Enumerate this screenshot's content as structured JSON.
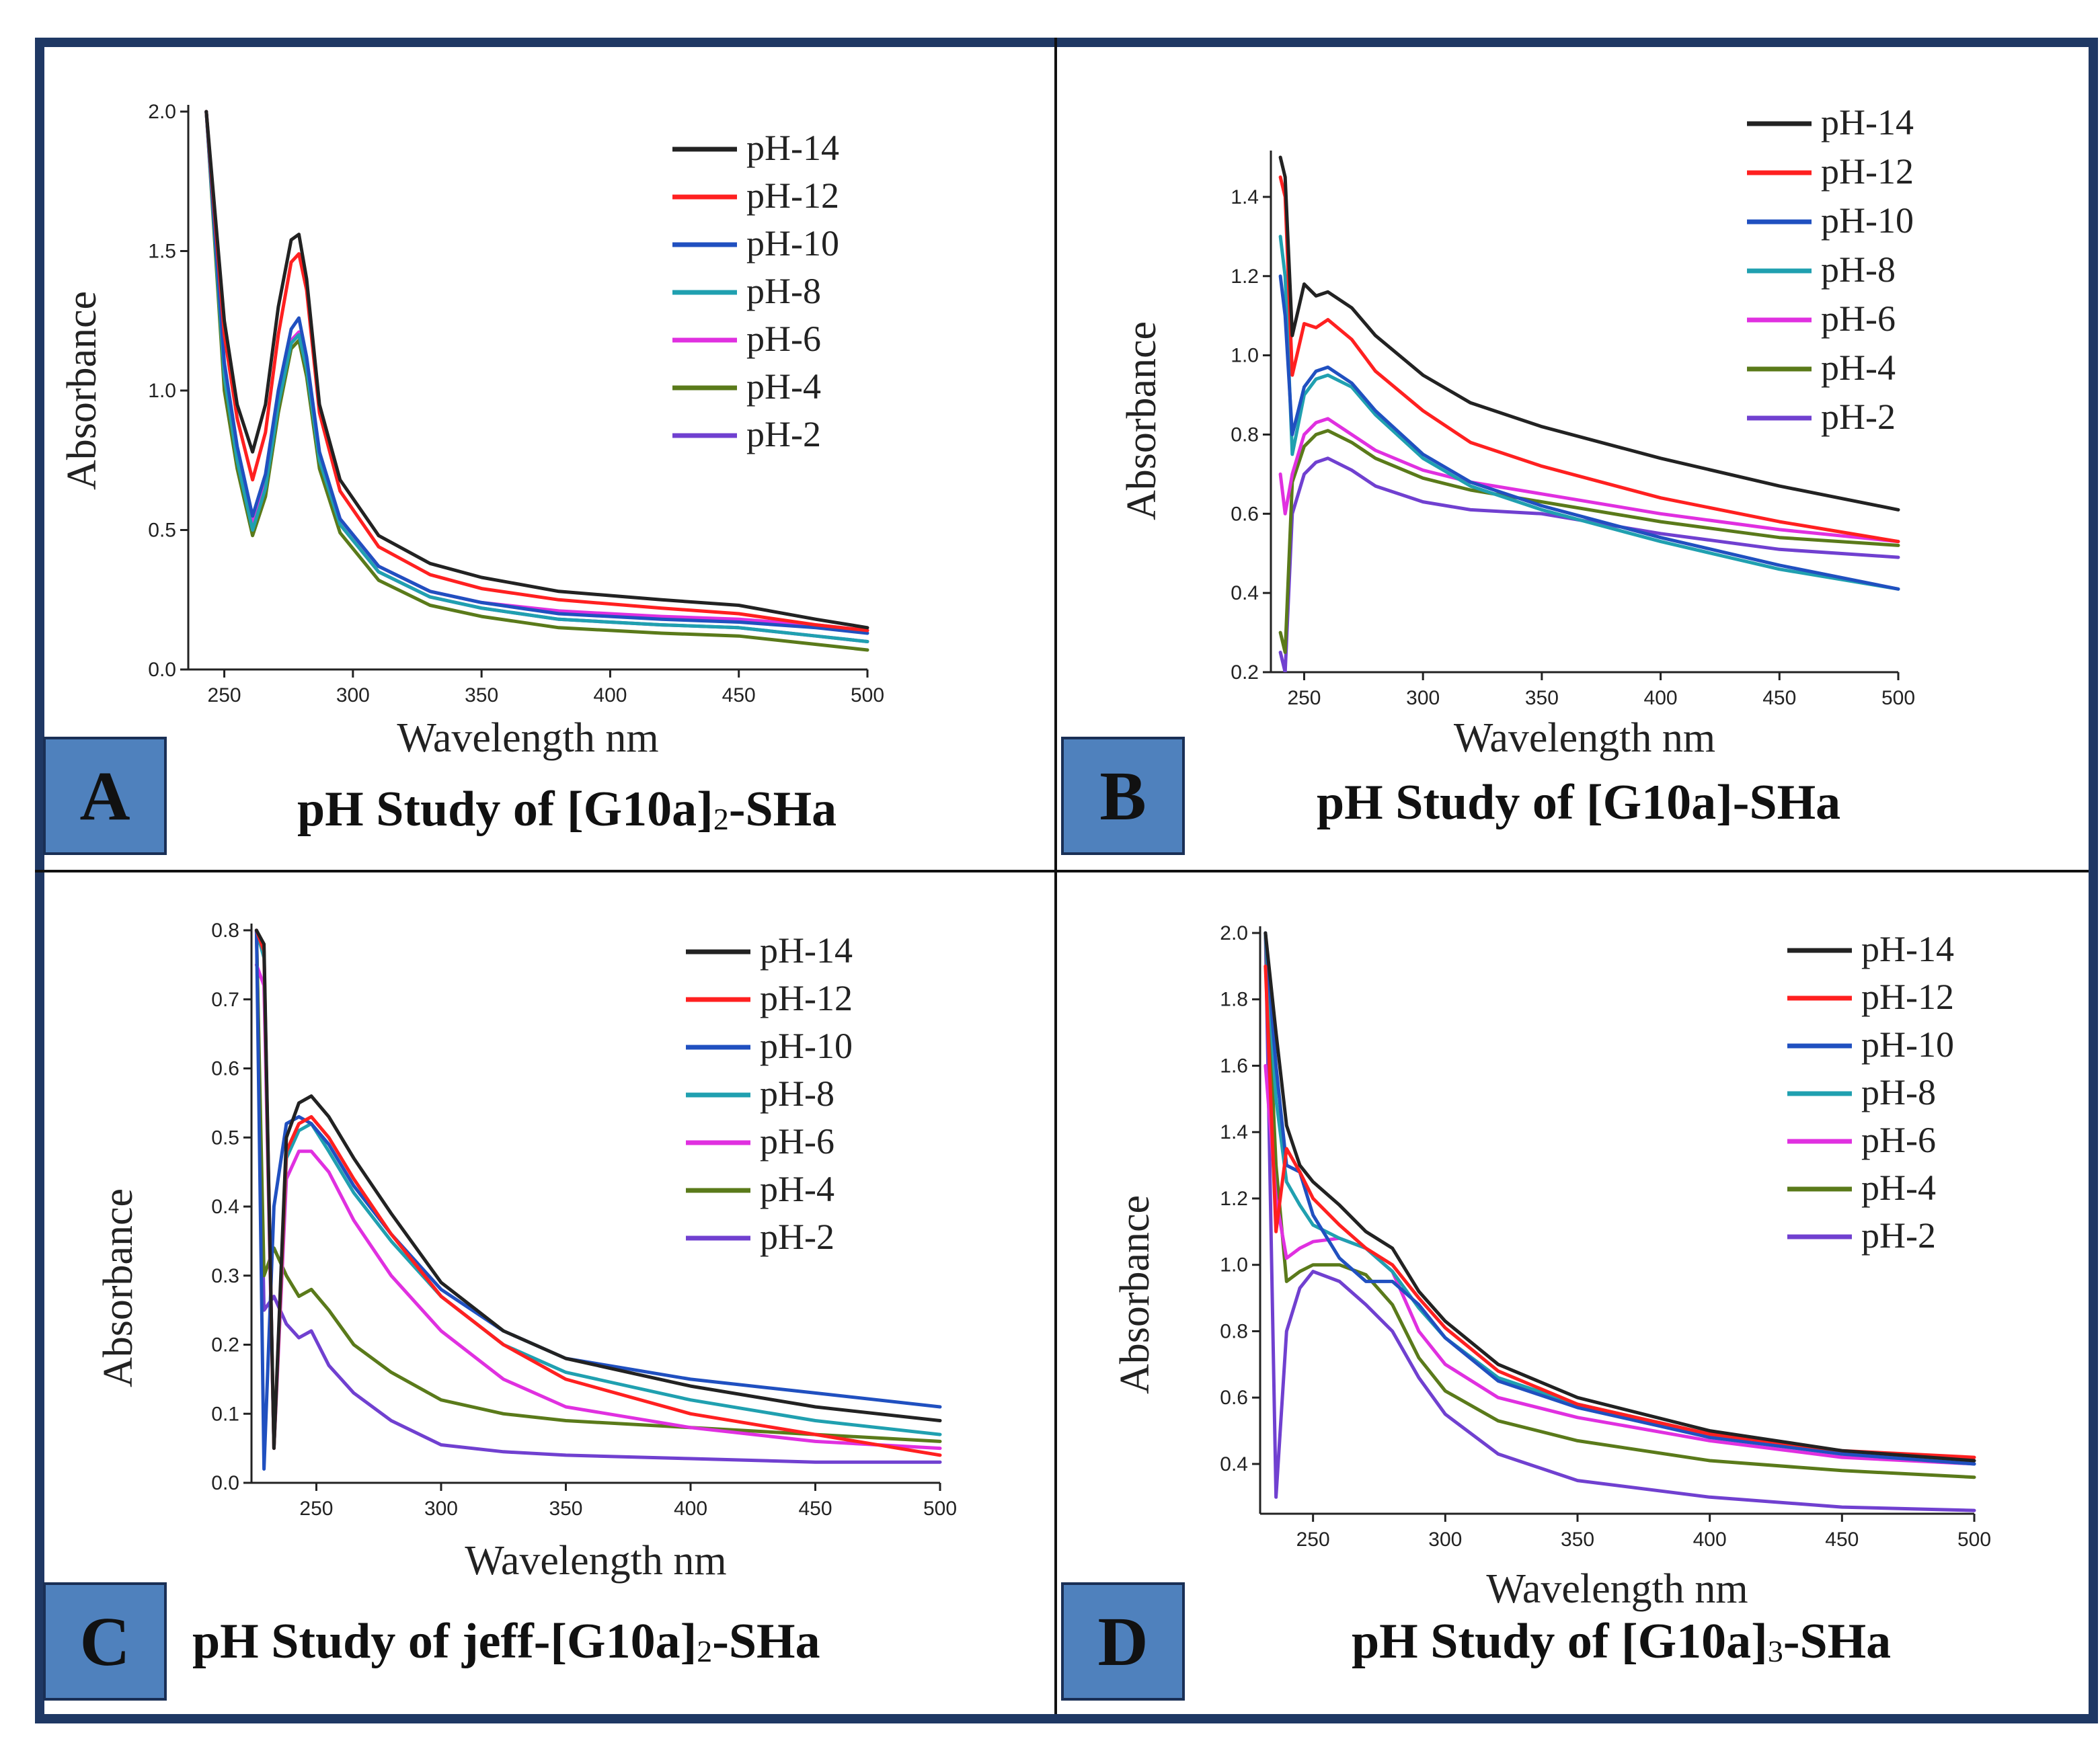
{
  "figure": {
    "background": "#ffffff",
    "frame_color": "#1f3864",
    "badge_color": "#4f81bd",
    "ph_colors": {
      "pH-14": "#222222",
      "pH-12": "#ff2020",
      "pH-10": "#2050c0",
      "pH-8": "#20a0b0",
      "pH-6": "#e030e0",
      "pH-4": "#5a7a1a",
      "pH-2": "#7040d0"
    }
  },
  "chart_data": [
    {
      "id": "A",
      "badge": "A",
      "title_parts": [
        "pH Study of [G10a]",
        "2",
        "-SHa"
      ],
      "type": "line",
      "xlabel": "Wavelength nm",
      "ylabel": "Absorbance",
      "xlim": [
        236,
        500
      ],
      "ylim": [
        0,
        2.0
      ],
      "xticks": [
        250,
        300,
        350,
        400,
        450,
        500
      ],
      "yticks": [
        0.0,
        0.5,
        1.0,
        1.5,
        2.0
      ],
      "ytick_labels": [
        "0.0",
        "0.5",
        "1.0",
        "1.5",
        "2.0"
      ],
      "legend": "top-right",
      "x": [
        243,
        250,
        255,
        261,
        266,
        271,
        276,
        279,
        282,
        287,
        295,
        310,
        330,
        350,
        380,
        420,
        450,
        480,
        500
      ],
      "series": [
        {
          "name": "pH-14",
          "values": [
            2.0,
            1.25,
            0.95,
            0.78,
            0.95,
            1.3,
            1.54,
            1.56,
            1.4,
            0.95,
            0.68,
            0.48,
            0.38,
            0.33,
            0.28,
            0.25,
            0.23,
            0.18,
            0.15
          ]
        },
        {
          "name": "pH-12",
          "values": [
            2.0,
            1.2,
            0.9,
            0.68,
            0.85,
            1.2,
            1.46,
            1.49,
            1.36,
            0.92,
            0.64,
            0.44,
            0.34,
            0.29,
            0.25,
            0.22,
            0.2,
            0.16,
            0.14
          ]
        },
        {
          "name": "pH-10",
          "values": [
            2.0,
            1.1,
            0.8,
            0.55,
            0.7,
            1.0,
            1.22,
            1.26,
            1.12,
            0.78,
            0.54,
            0.37,
            0.28,
            0.24,
            0.2,
            0.18,
            0.17,
            0.15,
            0.13
          ]
        },
        {
          "name": "pH-8",
          "values": [
            2.0,
            1.05,
            0.75,
            0.5,
            0.65,
            0.95,
            1.17,
            1.2,
            1.08,
            0.75,
            0.52,
            0.35,
            0.26,
            0.22,
            0.18,
            0.16,
            0.15,
            0.12,
            0.1
          ]
        },
        {
          "name": "pH-6",
          "values": [
            2.0,
            1.08,
            0.78,
            0.52,
            0.68,
            0.98,
            1.18,
            1.21,
            1.1,
            0.77,
            0.54,
            0.37,
            0.28,
            0.24,
            0.21,
            0.19,
            0.18,
            0.16,
            0.14
          ]
        },
        {
          "name": "pH-4",
          "values": [
            2.0,
            1.0,
            0.72,
            0.48,
            0.62,
            0.92,
            1.15,
            1.18,
            1.05,
            0.72,
            0.49,
            0.32,
            0.23,
            0.19,
            0.15,
            0.13,
            0.12,
            0.09,
            0.07
          ]
        },
        {
          "name": "pH-2",
          "values": [
            2.0,
            1.06,
            0.76,
            0.51,
            0.66,
            0.96,
            1.17,
            1.2,
            1.08,
            0.75,
            0.52,
            0.35,
            0.26,
            0.22,
            0.18,
            0.16,
            0.15,
            0.12,
            0.1
          ]
        }
      ]
    },
    {
      "id": "B",
      "badge": "B",
      "title_parts": [
        "pH Study of [G10a]-SHa"
      ],
      "type": "line",
      "xlabel": "Wavelength nm",
      "ylabel": "Absorbance",
      "xlim": [
        236,
        500
      ],
      "ylim": [
        0.2,
        1.5
      ],
      "xticks": [
        250,
        300,
        350,
        400,
        450,
        500
      ],
      "yticks": [
        0.2,
        0.4,
        0.6,
        0.8,
        1.0,
        1.2,
        1.4
      ],
      "ytick_labels": [
        "0.2",
        "0.4",
        "0.6",
        "0.8",
        "1.0",
        "1.2",
        "1.4"
      ],
      "legend": "top-right",
      "x": [
        240,
        242,
        245,
        250,
        255,
        260,
        270,
        280,
        300,
        320,
        350,
        400,
        450,
        500
      ],
      "series": [
        {
          "name": "pH-14",
          "values": [
            1.5,
            1.45,
            1.05,
            1.18,
            1.15,
            1.16,
            1.12,
            1.05,
            0.95,
            0.88,
            0.82,
            0.74,
            0.67,
            0.61
          ]
        },
        {
          "name": "pH-12",
          "values": [
            1.45,
            1.4,
            0.95,
            1.08,
            1.07,
            1.09,
            1.04,
            0.96,
            0.86,
            0.78,
            0.72,
            0.64,
            0.58,
            0.53
          ]
        },
        {
          "name": "pH-10",
          "values": [
            1.2,
            1.1,
            0.8,
            0.92,
            0.96,
            0.97,
            0.93,
            0.86,
            0.75,
            0.68,
            0.62,
            0.54,
            0.47,
            0.41
          ]
        },
        {
          "name": "pH-8",
          "values": [
            1.3,
            1.2,
            0.75,
            0.9,
            0.94,
            0.95,
            0.92,
            0.85,
            0.74,
            0.67,
            0.61,
            0.53,
            0.46,
            0.41
          ]
        },
        {
          "name": "pH-6",
          "values": [
            0.7,
            0.6,
            0.7,
            0.8,
            0.83,
            0.84,
            0.8,
            0.76,
            0.71,
            0.68,
            0.65,
            0.6,
            0.56,
            0.53
          ]
        },
        {
          "name": "pH-4",
          "values": [
            0.3,
            0.25,
            0.68,
            0.77,
            0.8,
            0.81,
            0.78,
            0.74,
            0.69,
            0.66,
            0.63,
            0.58,
            0.54,
            0.52
          ]
        },
        {
          "name": "pH-2",
          "values": [
            0.25,
            0.2,
            0.6,
            0.7,
            0.73,
            0.74,
            0.71,
            0.67,
            0.63,
            0.61,
            0.6,
            0.55,
            0.51,
            0.49
          ]
        }
      ]
    },
    {
      "id": "C",
      "badge": "C",
      "title_parts": [
        "pH Study of jeff-[G10a]",
        "2",
        "-SHa"
      ],
      "type": "line",
      "xlabel": "Wavelength nm",
      "ylabel": "Absorbance",
      "xlim": [
        224,
        500
      ],
      "ylim": [
        0,
        0.8
      ],
      "xticks": [
        250,
        300,
        350,
        400,
        450,
        500
      ],
      "yticks": [
        0.0,
        0.1,
        0.2,
        0.3,
        0.4,
        0.5,
        0.6,
        0.7,
        0.8
      ],
      "ytick_labels": [
        "0.0",
        "0.1",
        "0.2",
        "0.3",
        "0.4",
        "0.5",
        "0.6",
        "0.7",
        "0.8"
      ],
      "legend": "top-right",
      "x": [
        226,
        229,
        233,
        238,
        243,
        248,
        255,
        265,
        280,
        300,
        325,
        350,
        400,
        450,
        500
      ],
      "series": [
        {
          "name": "pH-14",
          "values": [
            0.8,
            0.78,
            0.05,
            0.5,
            0.55,
            0.56,
            0.53,
            0.47,
            0.39,
            0.29,
            0.22,
            0.18,
            0.14,
            0.11,
            0.09
          ]
        },
        {
          "name": "pH-12",
          "values": [
            0.8,
            0.77,
            0.05,
            0.48,
            0.52,
            0.53,
            0.5,
            0.44,
            0.36,
            0.27,
            0.2,
            0.15,
            0.1,
            0.07,
            0.04
          ]
        },
        {
          "name": "pH-10",
          "values": [
            0.8,
            0.02,
            0.4,
            0.52,
            0.53,
            0.52,
            0.49,
            0.43,
            0.36,
            0.28,
            0.22,
            0.18,
            0.15,
            0.13,
            0.11
          ]
        },
        {
          "name": "pH-8",
          "values": [
            0.8,
            0.76,
            0.05,
            0.47,
            0.51,
            0.52,
            0.48,
            0.42,
            0.35,
            0.27,
            0.2,
            0.16,
            0.12,
            0.09,
            0.07
          ]
        },
        {
          "name": "pH-6",
          "values": [
            0.75,
            0.72,
            0.05,
            0.44,
            0.48,
            0.48,
            0.45,
            0.38,
            0.3,
            0.22,
            0.15,
            0.11,
            0.08,
            0.06,
            0.05
          ]
        },
        {
          "name": "pH-4",
          "values": [
            0.8,
            0.3,
            0.34,
            0.3,
            0.27,
            0.28,
            0.25,
            0.2,
            0.16,
            0.12,
            0.1,
            0.09,
            0.08,
            0.07,
            0.06
          ]
        },
        {
          "name": "pH-2",
          "values": [
            0.8,
            0.25,
            0.27,
            0.23,
            0.21,
            0.22,
            0.17,
            0.13,
            0.09,
            0.055,
            0.045,
            0.04,
            0.035,
            0.03,
            0.03
          ]
        }
      ]
    },
    {
      "id": "D",
      "badge": "D",
      "title_parts": [
        "pH Study of [G10a]",
        "3",
        "-SHa"
      ],
      "type": "line",
      "xlabel": "Wavelength nm",
      "ylabel": "Absorbance",
      "xlim": [
        230,
        500
      ],
      "ylim": [
        0.25,
        2.0
      ],
      "xticks": [
        250,
        300,
        350,
        400,
        450,
        500
      ],
      "yticks": [
        0.4,
        0.6,
        0.8,
        1.0,
        1.2,
        1.4,
        1.6,
        1.8,
        2.0
      ],
      "ytick_labels": [
        "0.4",
        "0.6",
        "0.8",
        "1.0",
        "1.2",
        "1.4",
        "1.6",
        "1.8",
        "2.0"
      ],
      "legend": "top-right",
      "x": [
        232,
        236,
        240,
        245,
        250,
        260,
        270,
        280,
        290,
        300,
        320,
        350,
        400,
        450,
        500
      ],
      "series": [
        {
          "name": "pH-14",
          "values": [
            2.0,
            1.7,
            1.42,
            1.3,
            1.25,
            1.18,
            1.1,
            1.05,
            0.92,
            0.83,
            0.7,
            0.6,
            0.5,
            0.44,
            0.41
          ]
        },
        {
          "name": "pH-12",
          "values": [
            1.9,
            1.1,
            1.35,
            1.28,
            1.2,
            1.12,
            1.05,
            1.0,
            0.9,
            0.81,
            0.68,
            0.58,
            0.49,
            0.44,
            0.42
          ]
        },
        {
          "name": "pH-10",
          "values": [
            2.0,
            1.6,
            1.3,
            1.28,
            1.15,
            1.02,
            0.95,
            0.95,
            0.88,
            0.78,
            0.65,
            0.57,
            0.48,
            0.43,
            0.4
          ]
        },
        {
          "name": "pH-8",
          "values": [
            2.0,
            1.5,
            1.25,
            1.18,
            1.12,
            1.08,
            1.05,
            0.98,
            0.87,
            0.78,
            0.66,
            0.58,
            0.49,
            0.43,
            0.4
          ]
        },
        {
          "name": "pH-6",
          "values": [
            1.6,
            1.2,
            1.02,
            1.05,
            1.07,
            1.08,
            1.05,
            0.98,
            0.8,
            0.7,
            0.6,
            0.54,
            0.47,
            0.42,
            0.4
          ]
        },
        {
          "name": "pH-4",
          "values": [
            2.0,
            1.3,
            0.95,
            0.98,
            1.0,
            1.0,
            0.97,
            0.88,
            0.72,
            0.62,
            0.53,
            0.47,
            0.41,
            0.38,
            0.36
          ]
        },
        {
          "name": "pH-2",
          "values": [
            2.0,
            0.3,
            0.8,
            0.93,
            0.98,
            0.95,
            0.88,
            0.8,
            0.66,
            0.55,
            0.43,
            0.35,
            0.3,
            0.27,
            0.26
          ]
        }
      ]
    }
  ]
}
